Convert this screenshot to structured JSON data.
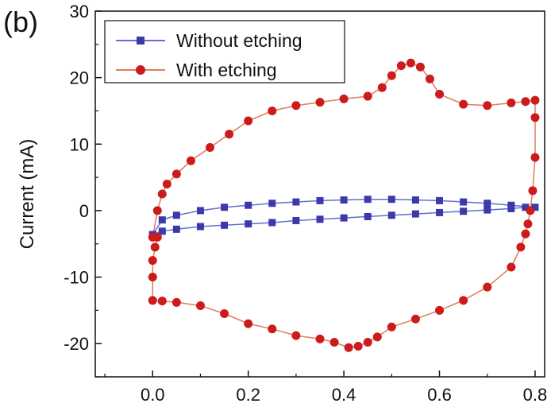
{
  "panel_label": "(b)",
  "chart_data": {
    "type": "line",
    "title": "",
    "xlabel": "",
    "ylabel": "Current (mA)",
    "xlim": [
      -0.12,
      0.82
    ],
    "ylim": [
      -25,
      30
    ],
    "x_ticks": [
      0.0,
      0.2,
      0.4,
      0.6,
      0.8
    ],
    "x_tick_labels": [
      "0.0",
      "0.2",
      "0.4",
      "0.6",
      "0.8"
    ],
    "y_ticks": [
      30,
      20,
      10,
      0,
      -10,
      -20
    ],
    "y_tick_labels": [
      "30",
      "20",
      "10",
      "0",
      "-10",
      "-20"
    ],
    "grid": false,
    "legend_position": "top-left",
    "series": [
      {
        "name": "Without etching",
        "marker": "square",
        "color": "#3a3aa8",
        "line_color": "#6a6ad0",
        "x": [
          0.0,
          0.02,
          0.05,
          0.1,
          0.15,
          0.2,
          0.25,
          0.3,
          0.35,
          0.4,
          0.45,
          0.5,
          0.55,
          0.6,
          0.65,
          0.7,
          0.75,
          0.8,
          0.78,
          0.75,
          0.7,
          0.65,
          0.6,
          0.55,
          0.5,
          0.45,
          0.4,
          0.35,
          0.3,
          0.25,
          0.2,
          0.15,
          0.1,
          0.05,
          0.02,
          0.0
        ],
        "y": [
          -3.6,
          -1.4,
          -0.7,
          0.0,
          0.5,
          0.8,
          1.1,
          1.3,
          1.5,
          1.6,
          1.7,
          1.7,
          1.6,
          1.5,
          1.3,
          1.1,
          0.8,
          0.5,
          0.5,
          0.3,
          0.1,
          -0.1,
          -0.3,
          -0.5,
          -0.7,
          -0.9,
          -1.1,
          -1.3,
          -1.5,
          -1.8,
          -2.0,
          -2.2,
          -2.4,
          -2.8,
          -3.1,
          -3.6
        ]
      },
      {
        "name": "With etching",
        "marker": "circle",
        "color": "#cc1b1b",
        "line_color": "#e07b5a",
        "x": [
          0.0,
          0.01,
          0.02,
          0.03,
          0.05,
          0.08,
          0.12,
          0.16,
          0.2,
          0.25,
          0.3,
          0.35,
          0.4,
          0.45,
          0.48,
          0.5,
          0.52,
          0.54,
          0.56,
          0.58,
          0.6,
          0.65,
          0.7,
          0.75,
          0.78,
          0.8,
          0.8,
          0.8,
          0.795,
          0.79,
          0.785,
          0.78,
          0.77,
          0.75,
          0.7,
          0.65,
          0.6,
          0.55,
          0.5,
          0.47,
          0.45,
          0.43,
          0.41,
          0.38,
          0.35,
          0.3,
          0.25,
          0.2,
          0.15,
          0.1,
          0.05,
          0.02,
          0.0,
          0.0,
          0.0,
          0.005,
          0.01
        ],
        "y": [
          -4.0,
          0.0,
          2.5,
          4.0,
          5.5,
          7.5,
          9.5,
          11.5,
          13.5,
          15.0,
          15.8,
          16.3,
          16.8,
          17.2,
          18.5,
          20.3,
          21.8,
          22.2,
          21.6,
          19.8,
          17.5,
          16.0,
          15.8,
          16.2,
          16.4,
          16.6,
          14.0,
          8.0,
          3.0,
          0.0,
          -2.0,
          -3.5,
          -5.5,
          -8.5,
          -11.5,
          -13.5,
          -15.0,
          -16.3,
          -17.5,
          -19.0,
          -19.8,
          -20.4,
          -20.6,
          -19.8,
          -19.3,
          -18.8,
          -17.8,
          -17.0,
          -15.5,
          -14.3,
          -13.8,
          -13.6,
          -13.5,
          -10.0,
          -7.5,
          -5.5,
          -4.0
        ]
      }
    ]
  }
}
